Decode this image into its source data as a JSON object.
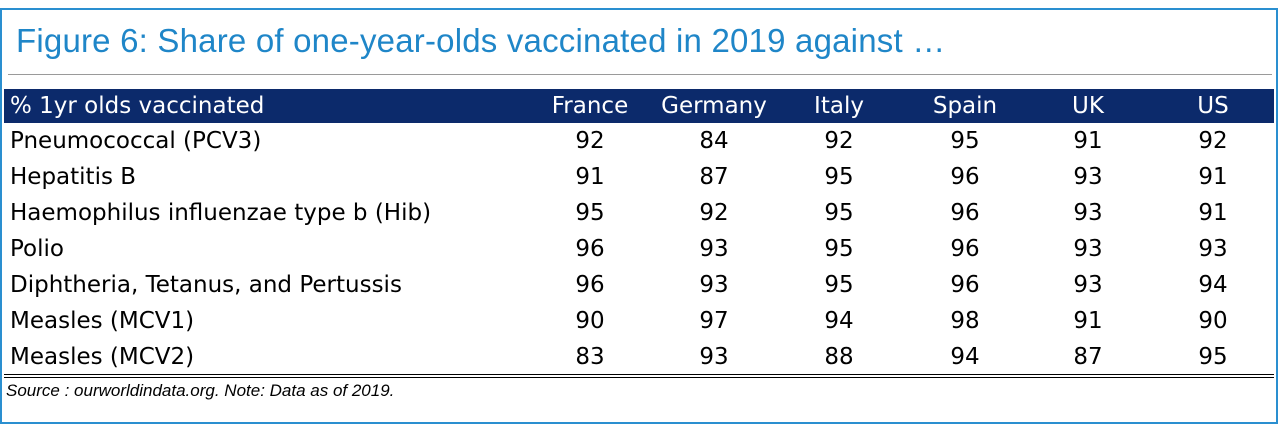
{
  "title": "Figure 6: Share of one-year-olds vaccinated in 2019 against …",
  "table": {
    "row_header": "% 1yr olds vaccinated",
    "columns": [
      "France",
      "Germany",
      "Italy",
      "Spain",
      "UK",
      "US"
    ],
    "rows": [
      {
        "label": "Pneumococcal (PCV3)",
        "values": [
          "92",
          "84",
          "92",
          "95",
          "91",
          "92"
        ]
      },
      {
        "label": "Hepatitis B",
        "values": [
          "91",
          "87",
          "95",
          "96",
          "93",
          "91"
        ]
      },
      {
        "label": "Haemophilus influenzae type b (Hib)",
        "values": [
          "95",
          "92",
          "95",
          "96",
          "93",
          "91"
        ]
      },
      {
        "label": "Polio",
        "values": [
          "96",
          "93",
          "95",
          "96",
          "93",
          "93"
        ]
      },
      {
        "label": "Diphtheria, Tetanus, and Pertussis",
        "values": [
          "96",
          "93",
          "95",
          "96",
          "93",
          "94"
        ]
      },
      {
        "label": "Measles (MCV1)",
        "values": [
          "90",
          "97",
          "94",
          "98",
          "91",
          "90"
        ]
      },
      {
        "label": "Measles (MCV2)",
        "values": [
          "83",
          "93",
          "88",
          "94",
          "87",
          "95"
        ]
      }
    ]
  },
  "source": "Source : ourworldindata.org. Note: Data as of 2019.",
  "colors": {
    "title": "#1f86c8",
    "header_bg": "#0c2a6b",
    "frame": "#2a8fd0"
  }
}
